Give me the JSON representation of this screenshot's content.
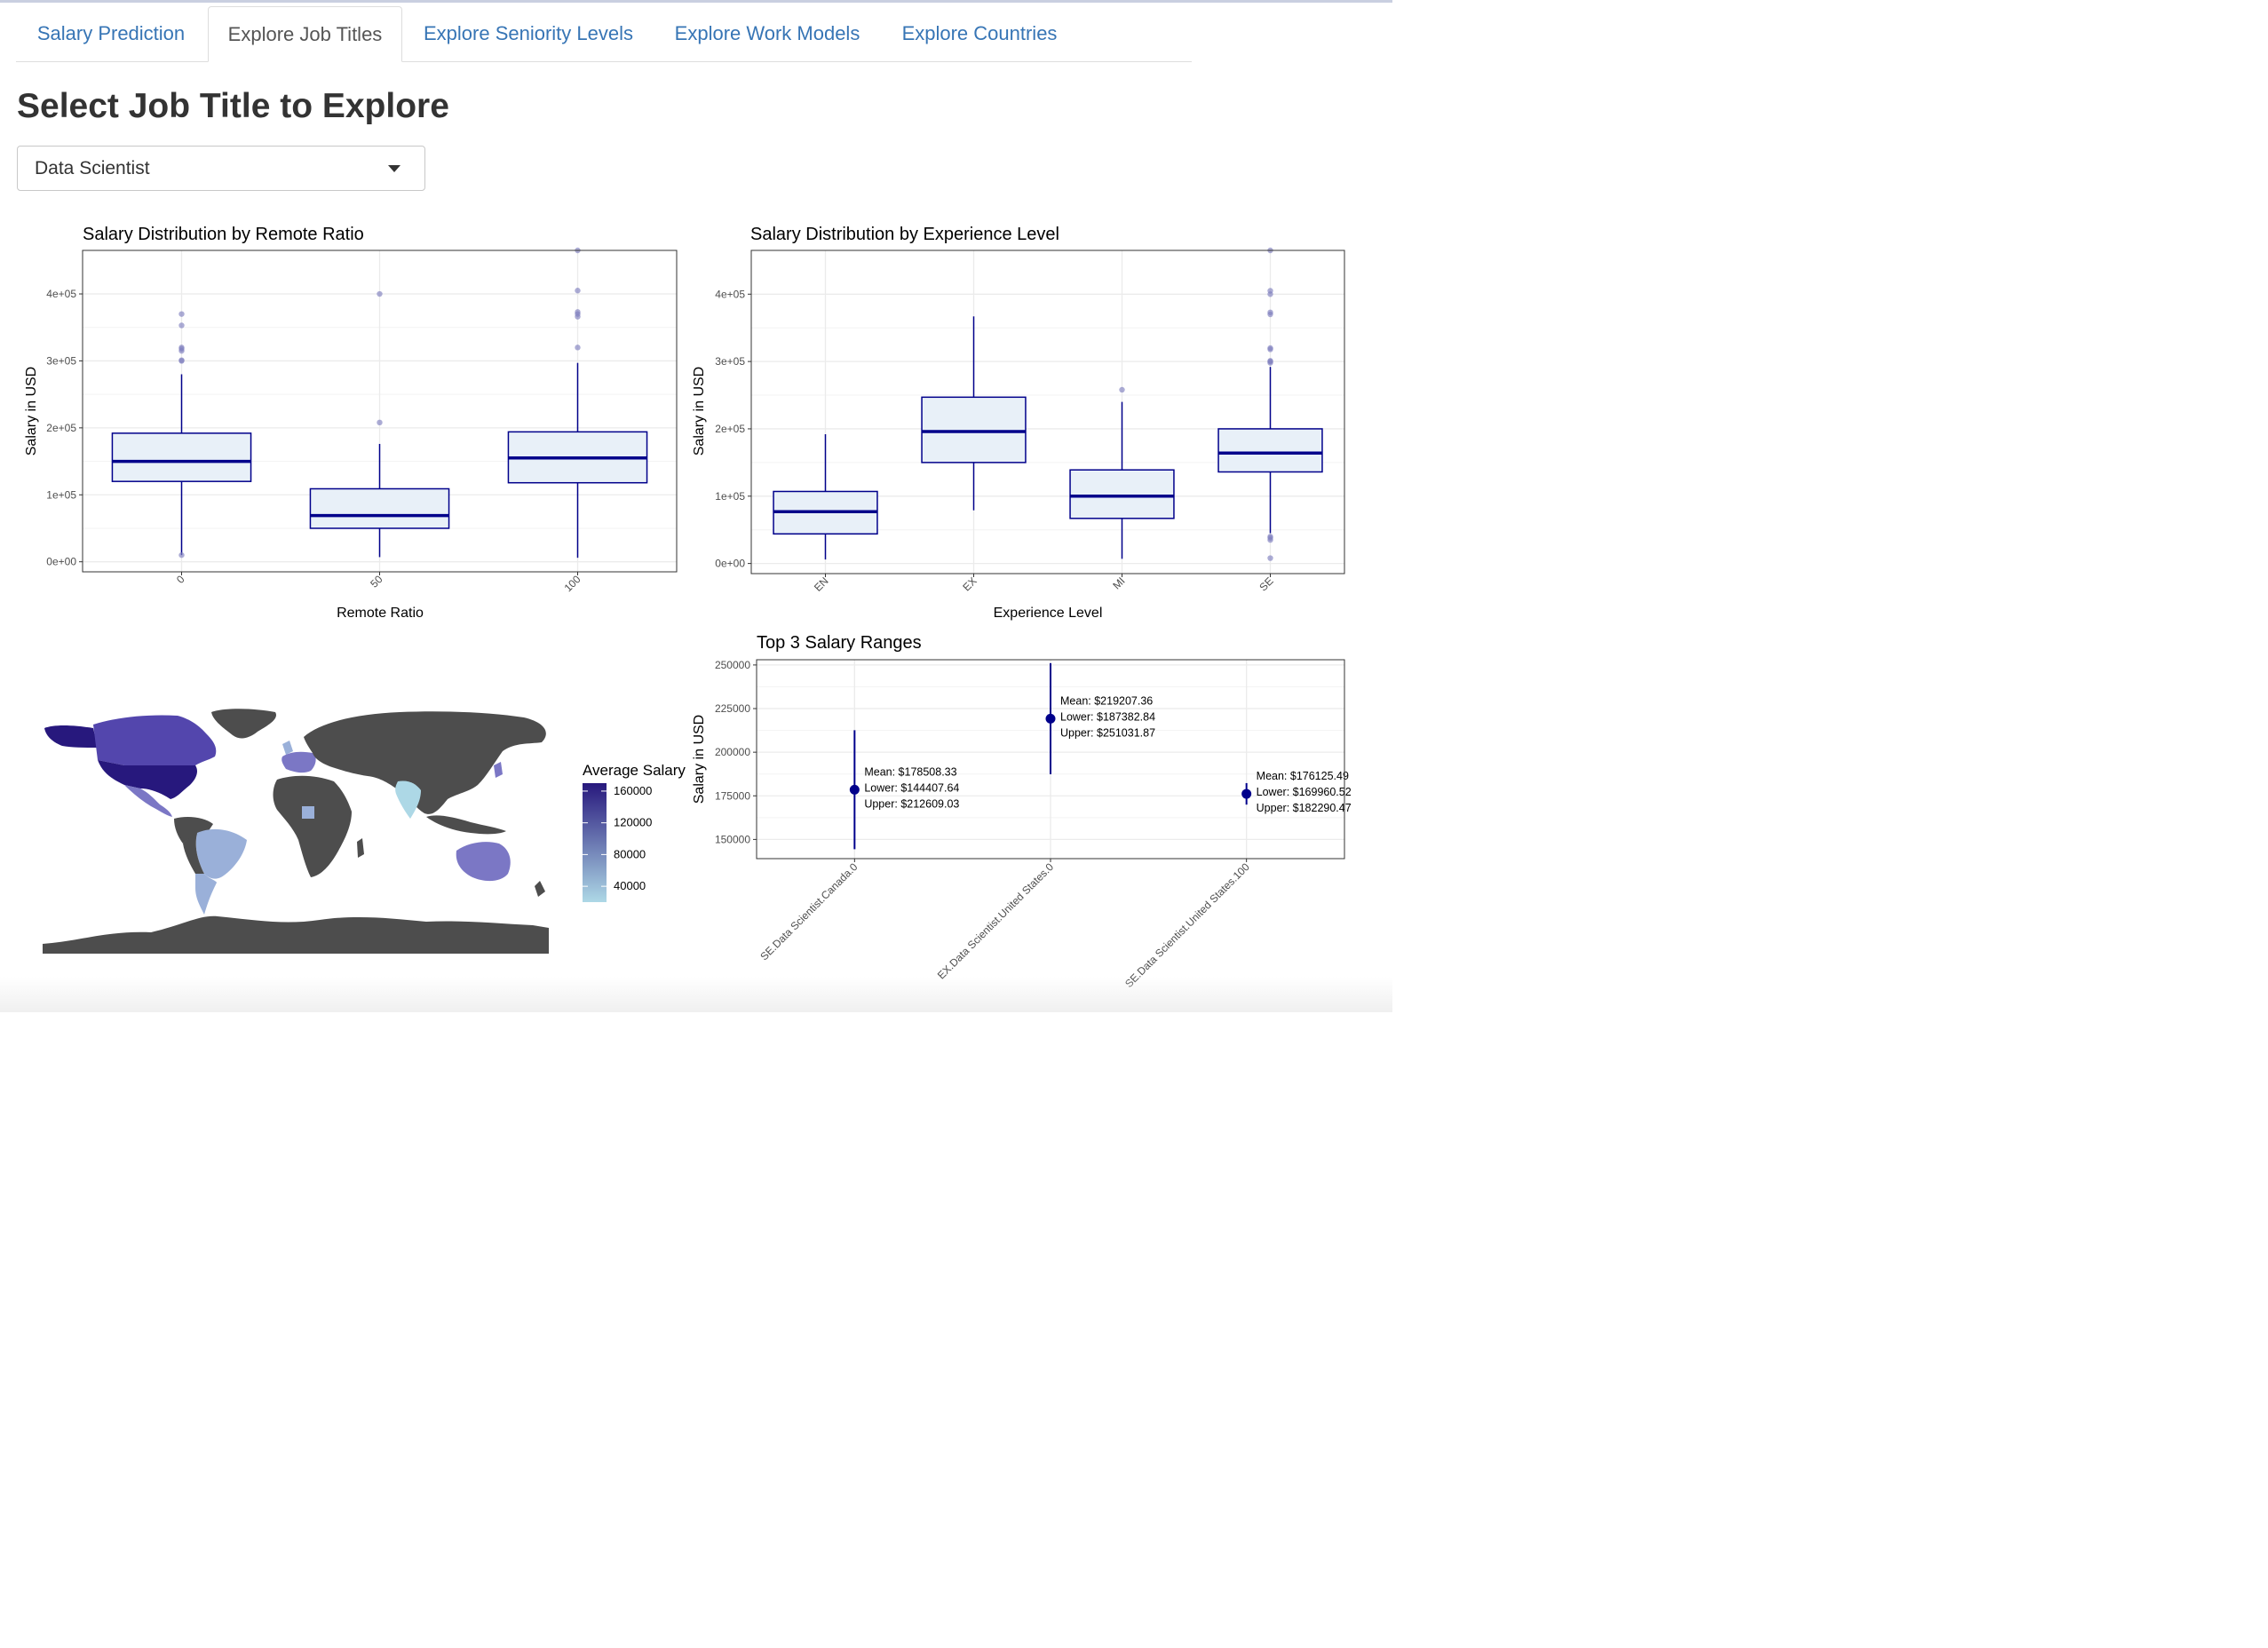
{
  "tabs": [
    {
      "label": "Salary Prediction",
      "active": false
    },
    {
      "label": "Explore Job Titles",
      "active": true
    },
    {
      "label": "Explore Seniority Levels",
      "active": false
    },
    {
      "label": "Explore Work Models",
      "active": false
    },
    {
      "label": "Explore Countries",
      "active": false
    }
  ],
  "page": {
    "heading": "Select Job Title to Explore",
    "job_select": {
      "value": "Data Scientist",
      "icon": "caret-down-icon"
    }
  },
  "colors": {
    "box_fill": "#e8f0f8",
    "box_line": "#00008b",
    "outlier": "#7f7fbf",
    "grid": "#ebebeb",
    "land_no_data": "#4d4d4d",
    "scale_low": "#add8e6",
    "scale_high": "#27187d",
    "tab_link": "#3775b5"
  },
  "chart_data": [
    {
      "type": "box",
      "title": "Salary Distribution by Remote Ratio",
      "xlabel": "Remote Ratio",
      "ylabel": "Salary in USD",
      "ylim": [
        -15000,
        465000
      ],
      "y_ticks": [
        0,
        100000,
        200000,
        300000,
        400000
      ],
      "y_tick_labels": [
        "0e+00",
        "1e+05",
        "2e+05",
        "3e+05",
        "4e+05"
      ],
      "categories": [
        "0",
        "50",
        "100"
      ],
      "boxes": [
        {
          "category": "0",
          "lower_whisker": 10000,
          "q1": 120000,
          "median": 150000,
          "q3": 192000,
          "upper_whisker": 280000,
          "outliers": [
            10000,
            300000,
            301000,
            315000,
            318000,
            320000,
            353000,
            370000
          ]
        },
        {
          "category": "50",
          "lower_whisker": 7000,
          "q1": 50000,
          "median": 69000,
          "q3": 109000,
          "upper_whisker": 176000,
          "outliers": [
            208000,
            400000
          ]
        },
        {
          "category": "100",
          "lower_whisker": 6000,
          "q1": 118000,
          "median": 155000,
          "q3": 194000,
          "upper_whisker": 297000,
          "outliers": [
            320000,
            366000,
            370000,
            373000,
            405000,
            465000
          ]
        }
      ]
    },
    {
      "type": "box",
      "title": "Salary Distribution by Experience Level",
      "xlabel": "Experience Level",
      "ylabel": "Salary in USD",
      "ylim": [
        -15000,
        465000
      ],
      "y_ticks": [
        0,
        100000,
        200000,
        300000,
        400000
      ],
      "y_tick_labels": [
        "0e+00",
        "1e+05",
        "2e+05",
        "3e+05",
        "4e+05"
      ],
      "categories": [
        "EN",
        "EX",
        "MI",
        "SE"
      ],
      "boxes": [
        {
          "category": "EN",
          "lower_whisker": 6000,
          "q1": 44000,
          "median": 77000,
          "q3": 107000,
          "upper_whisker": 192000,
          "outliers": []
        },
        {
          "category": "EX",
          "lower_whisker": 79000,
          "q1": 150000,
          "median": 196000,
          "q3": 247000,
          "upper_whisker": 367000,
          "outliers": []
        },
        {
          "category": "MI",
          "lower_whisker": 7000,
          "q1": 67000,
          "median": 100000,
          "q3": 139000,
          "upper_whisker": 240000,
          "outliers": [
            258000
          ]
        },
        {
          "category": "SE",
          "lower_whisker": 45000,
          "q1": 136000,
          "median": 164000,
          "q3": 200000,
          "upper_whisker": 292000,
          "outliers": [
            8000,
            35000,
            38000,
            40000,
            298000,
            300000,
            301000,
            318000,
            320000,
            370000,
            373000,
            400000,
            405000,
            465000
          ]
        }
      ]
    },
    {
      "type": "errorbar",
      "title": "Top 3 Salary Ranges",
      "xlabel": "",
      "ylabel": "Salary in USD",
      "ylim": [
        139000,
        253000
      ],
      "y_ticks": [
        150000,
        175000,
        200000,
        225000,
        250000
      ],
      "y_tick_labels": [
        "150000",
        "175000",
        "200000",
        "225000",
        "250000"
      ],
      "categories": [
        "SE.Data Scientist.Canada.0",
        "EX.Data Scientist.United States.0",
        "SE.Data Scientist.United States.100"
      ],
      "points": [
        {
          "category": "SE.Data Scientist.Canada.0",
          "mean": 178508.33,
          "lower": 144407.64,
          "upper": 212609.03,
          "labels": [
            "Mean: $178508.33",
            "Lower: $144407.64",
            "Upper: $212609.03"
          ]
        },
        {
          "category": "EX.Data Scientist.United States.0",
          "mean": 219207.36,
          "lower": 187382.84,
          "upper": 251031.87,
          "labels": [
            "Mean: $219207.36",
            "Lower: $187382.84",
            "Upper: $251031.87"
          ]
        },
        {
          "category": "SE.Data Scientist.United States.100",
          "mean": 176125.49,
          "lower": 169960.52,
          "upper": 182290.47,
          "labels": [
            "Mean: $176125.49",
            "Lower: $169960.52",
            "Upper: $182290.47"
          ]
        }
      ]
    },
    {
      "type": "choropleth",
      "title": "",
      "legend_title": "Average Salary",
      "legend_ticks": [
        "160000",
        "120000",
        "80000",
        "40000"
      ],
      "scale_range": [
        20000,
        170000
      ],
      "highlighted_regions": [
        "United States",
        "Canada",
        "Mexico",
        "Brazil",
        "Argentina",
        "Western Europe",
        "India",
        "Nigeria",
        "Australia"
      ]
    }
  ]
}
